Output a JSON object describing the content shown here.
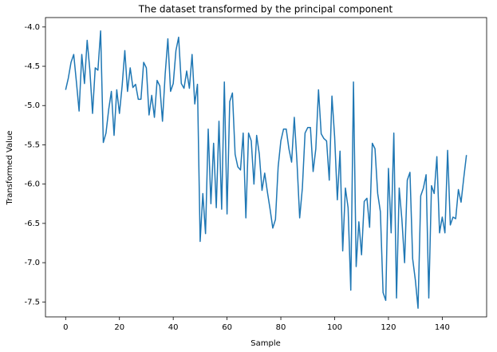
{
  "chart_data": {
    "type": "line",
    "title": "The dataset transformed by the principal component",
    "xlabel": "Sample",
    "ylabel": "Transformed Value",
    "color": "#1f77b4",
    "x": [
      0,
      1,
      2,
      3,
      4,
      5,
      6,
      7,
      8,
      9,
      10,
      11,
      12,
      13,
      14,
      15,
      16,
      17,
      18,
      19,
      20,
      21,
      22,
      23,
      24,
      25,
      26,
      27,
      28,
      29,
      30,
      31,
      32,
      33,
      34,
      35,
      36,
      37,
      38,
      39,
      40,
      41,
      42,
      43,
      44,
      45,
      46,
      47,
      48,
      49,
      50,
      51,
      52,
      53,
      54,
      55,
      56,
      57,
      58,
      59,
      60,
      61,
      62,
      63,
      64,
      65,
      66,
      67,
      68,
      69,
      70,
      71,
      72,
      73,
      74,
      75,
      76,
      77,
      78,
      79,
      80,
      81,
      82,
      83,
      84,
      85,
      86,
      87,
      88,
      89,
      90,
      91,
      92,
      93,
      94,
      95,
      96,
      97,
      98,
      99,
      100,
      101,
      102,
      103,
      104,
      105,
      106,
      107,
      108,
      109,
      110,
      111,
      112,
      113,
      114,
      115,
      116,
      117,
      118,
      119,
      120,
      121,
      122,
      123,
      124,
      125,
      126,
      127,
      128,
      129,
      130,
      131,
      132,
      133,
      134,
      135,
      136,
      137,
      138,
      139,
      140,
      141,
      142,
      143,
      144,
      145,
      146,
      147,
      148,
      149
    ],
    "values": [
      -4.8,
      -4.65,
      -4.45,
      -4.35,
      -4.7,
      -5.07,
      -4.35,
      -4.72,
      -4.17,
      -4.55,
      -5.1,
      -4.52,
      -4.55,
      -4.05,
      -5.47,
      -5.35,
      -5.05,
      -4.82,
      -5.38,
      -4.8,
      -5.1,
      -4.75,
      -4.3,
      -4.82,
      -4.52,
      -4.77,
      -4.73,
      -4.92,
      -4.92,
      -4.45,
      -4.52,
      -5.12,
      -4.87,
      -5.15,
      -4.68,
      -4.75,
      -5.2,
      -4.6,
      -4.15,
      -4.82,
      -4.72,
      -4.3,
      -4.13,
      -4.72,
      -4.78,
      -4.56,
      -4.78,
      -4.35,
      -4.98,
      -4.73,
      -6.73,
      -6.12,
      -6.63,
      -5.3,
      -6.25,
      -5.48,
      -6.3,
      -5.2,
      -6.32,
      -4.7,
      -6.38,
      -4.95,
      -4.84,
      -5.62,
      -5.78,
      -5.82,
      -5.35,
      -6.43,
      -5.35,
      -5.45,
      -6.0,
      -5.38,
      -5.62,
      -6.08,
      -5.86,
      -6.1,
      -6.32,
      -6.56,
      -6.45,
      -5.78,
      -5.45,
      -5.3,
      -5.3,
      -5.55,
      -5.72,
      -5.15,
      -5.72,
      -6.43,
      -6.05,
      -5.35,
      -5.28,
      -5.28,
      -5.84,
      -5.55,
      -4.8,
      -5.36,
      -5.42,
      -5.45,
      -5.95,
      -4.88,
      -5.4,
      -6.2,
      -5.58,
      -6.85,
      -6.05,
      -6.3,
      -7.35,
      -4.7,
      -7.05,
      -6.48,
      -6.9,
      -6.22,
      -6.18,
      -6.55,
      -5.48,
      -5.55,
      -6.12,
      -6.35,
      -7.38,
      -7.48,
      -5.8,
      -6.62,
      -5.35,
      -7.45,
      -6.05,
      -6.45,
      -7.0,
      -5.95,
      -5.85,
      -6.95,
      -7.22,
      -7.58,
      -6.15,
      -6.05,
      -5.88,
      -7.45,
      -6.02,
      -6.12,
      -5.65,
      -6.62,
      -6.42,
      -6.62,
      -5.57,
      -6.52,
      -6.42,
      -6.44,
      -6.07,
      -6.23,
      -5.92,
      -5.63
    ],
    "xlim": [
      -7.5,
      156.5
    ],
    "ylim": [
      -7.69,
      -3.88
    ],
    "xticks": [
      0,
      20,
      40,
      60,
      80,
      100,
      120,
      140
    ],
    "yticks": [
      {
        "value": -7.5,
        "label": "-7.5"
      },
      {
        "value": -7,
        "label": "-7.0"
      },
      -6.5,
      {
        "value": -6,
        "label": "-6.0"
      },
      -5.5,
      {
        "value": -5,
        "label": "-5.0"
      },
      -4.5,
      {
        "value": -4,
        "label": "-4.0"
      }
    ]
  }
}
